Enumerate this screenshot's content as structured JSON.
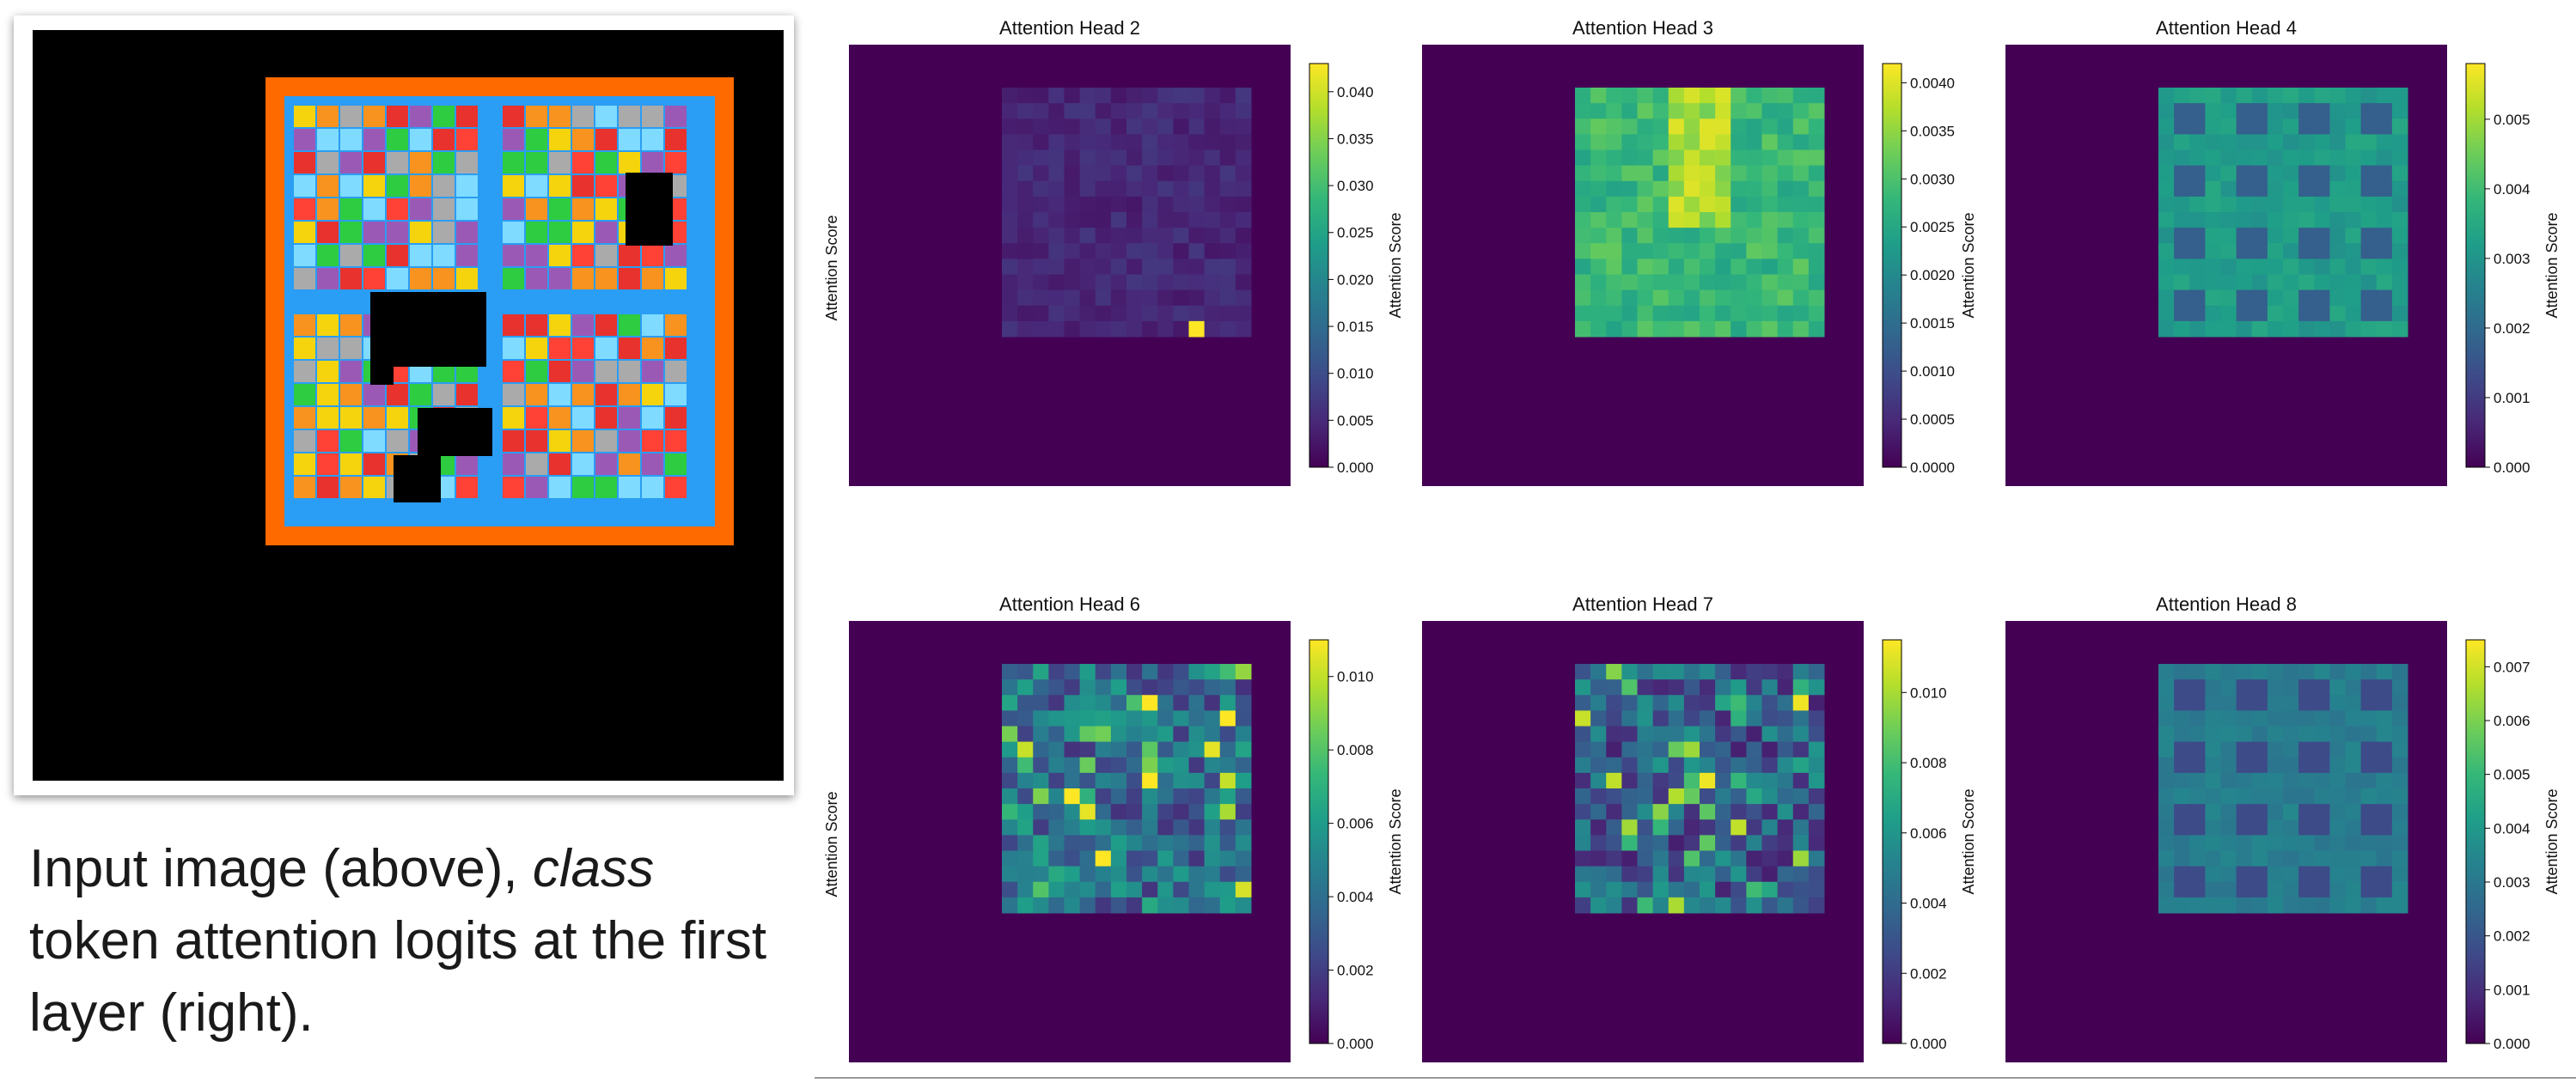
{
  "caption": {
    "part1": "Input image (above), ",
    "emphasis": "class",
    "part2": " token attention logits at the first layer (right)."
  },
  "input_image": {
    "description_colors": {
      "background": "#000000",
      "outer_border": "#ff6a00",
      "inner_frame": "#2a9df4",
      "tile_palette": [
        "#e8322d",
        "#f5d40d",
        "#2ecc40",
        "#7fdbff",
        "#aaaaaa",
        "#b10dc9",
        "#ff4136"
      ]
    }
  },
  "colormap": "viridis",
  "chart_data": [
    {
      "type": "heatmap",
      "title": "Attention Head 2",
      "colorbar_label": "Attention Score",
      "side_label": "Attention Score",
      "ticks": [
        "0.000",
        "0.005",
        "0.010",
        "0.015",
        "0.020",
        "0.025",
        "0.030",
        "0.035",
        "0.040"
      ],
      "vmin": 0.0,
      "vmax": 0.043,
      "grid_size": 16,
      "peak": {
        "row": 15,
        "col": 12,
        "value": 0.043
      },
      "base_value": 0.002
    },
    {
      "type": "heatmap",
      "title": "Attention Head 3",
      "colorbar_label": "Attention Score",
      "side_label": "",
      "ticks": [
        "0.0000",
        "0.0005",
        "0.0010",
        "0.0015",
        "0.0020",
        "0.0025",
        "0.0030",
        "0.0035",
        "0.0040"
      ],
      "vmin": 0.0,
      "vmax": 0.0042,
      "grid_size": 16,
      "base_value": 0.0028
    },
    {
      "type": "heatmap",
      "title": "Attention Head 4",
      "colorbar_label": "Attention Score",
      "side_label": "",
      "ticks": [
        "0.000",
        "0.001",
        "0.002",
        "0.003",
        "0.004",
        "0.005"
      ],
      "vmin": 0.0,
      "vmax": 0.0058,
      "grid_size": 16,
      "base_value": 0.0032
    },
    {
      "type": "heatmap",
      "title": "Attention Head 6",
      "colorbar_label": "Attention Score",
      "side_label": "Attention Score",
      "ticks": [
        "0.000",
        "0.002",
        "0.004",
        "0.006",
        "0.008",
        "0.010"
      ],
      "vmin": 0.0,
      "vmax": 0.011,
      "grid_size": 16,
      "base_value": 0.004
    },
    {
      "type": "heatmap",
      "title": "Attention Head 7",
      "colorbar_label": "Attention Score",
      "side_label": "",
      "ticks": [
        "0.000",
        "0.002",
        "0.004",
        "0.006",
        "0.008",
        "0.010"
      ],
      "vmin": 0.0,
      "vmax": 0.0115,
      "grid_size": 16,
      "base_value": 0.0035
    },
    {
      "type": "heatmap",
      "title": "Attention Head 8",
      "colorbar_label": "Attention Score",
      "side_label": "",
      "ticks": [
        "0.000",
        "0.001",
        "0.002",
        "0.003",
        "0.004",
        "0.005",
        "0.006",
        "0.007"
      ],
      "vmin": 0.0,
      "vmax": 0.0075,
      "grid_size": 16,
      "base_value": 0.0032
    }
  ]
}
